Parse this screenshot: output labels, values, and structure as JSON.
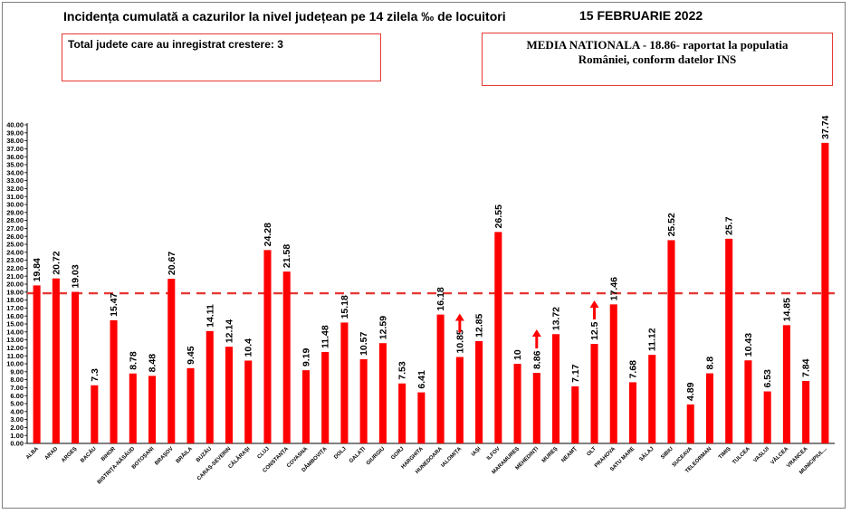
{
  "header": {
    "title": "Incidența cumulată a cazurilor la nivel județean pe 14 zilela ‰ de locuitori",
    "date": "15 FEBRUARIE 2022"
  },
  "info_left": {
    "text": "Total judete care au inregistrat crestere: 3"
  },
  "info_right": {
    "line1": "MEDIA NATIONALA - 18.86-  raportat la populatia",
    "line2": "României, conform datelor INS"
  },
  "colors": {
    "bar": "#ff0000",
    "reference_line": "#e53935",
    "arrow": "#ff0000",
    "axis": "#000000"
  },
  "chart_data": {
    "type": "bar",
    "categories": [
      "ALBA",
      "ARAD",
      "ARGEȘ",
      "BACĂU",
      "BIHOR",
      "BISTRIȚA-NĂSĂUD",
      "BOTOȘANI",
      "BRAȘOV",
      "BRĂILA",
      "BUZĂU",
      "CARAȘ-SEVERIN",
      "CĂLĂRAȘI",
      "CLUJ",
      "CONSTANȚA",
      "COVASNA",
      "DÂMBOVIȚA",
      "DOLJ",
      "GALAȚI",
      "GIURGIU",
      "GORJ",
      "HARGHITA",
      "HUNEDOARA",
      "IALOMIȚA",
      "IAȘI",
      "ILFOV",
      "MARAMUREȘ",
      "MEHEDINȚI",
      "MUREȘ",
      "NEAMȚ",
      "OLT",
      "PRAHOVA",
      "SATU MARE",
      "SĂLAJ",
      "SIBIU",
      "SUCEAVA",
      "TELEORMAN",
      "TIMIȘ",
      "TULCEA",
      "VASLUI",
      "VÂLCEA",
      "VRANCEA",
      "MUNICIPIUL..."
    ],
    "values": [
      19.84,
      20.72,
      19.03,
      7.3,
      15.47,
      8.78,
      8.48,
      20.67,
      9.45,
      14.11,
      12.14,
      10.4,
      24.28,
      21.58,
      9.19,
      11.48,
      15.18,
      10.57,
      12.59,
      7.53,
      6.41,
      16.18,
      10.85,
      12.85,
      26.55,
      10,
      8.86,
      13.72,
      7.17,
      12.5,
      17.46,
      7.68,
      11.12,
      25.52,
      4.89,
      8.8,
      25.7,
      10.43,
      6.53,
      14.85,
      7.84,
      37.74
    ],
    "value_labels": [
      "19.84",
      "20.72",
      "19.03",
      "7.3",
      "15.47",
      "8.78",
      "8.48",
      "20.67",
      "9.45",
      "14.11",
      "12.14",
      "10.4",
      "24.28",
      "21.58",
      "9.19",
      "11.48",
      "15.18",
      "10.57",
      "12.59",
      "7.53",
      "6.41",
      "16.18",
      "10.85",
      "12.85",
      "26.55",
      "10",
      "8.86",
      "13.72",
      "7.17",
      "12.5",
      "17.46",
      "7.68",
      "11.12",
      "25.52",
      "4.89",
      "8.8",
      "25.7",
      "10.43",
      "6.53",
      "14.85",
      "7.84",
      "37.74"
    ],
    "ylim": [
      0,
      40
    ],
    "ytick_step": 1,
    "ytick_labels": [
      "0.00",
      "1.00",
      "2.00",
      "3.00",
      "4.00",
      "5.00",
      "6.00",
      "7.00",
      "8.00",
      "9.00",
      "10.00",
      "11.00",
      "12.00",
      "13.00",
      "14.00",
      "15.00",
      "16.00",
      "17.00",
      "18.00",
      "19.00",
      "20.00",
      "21.00",
      "22.00",
      "23.00",
      "24.00",
      "25.00",
      "26.00",
      "27.00",
      "28.00",
      "29.00",
      "30.00",
      "31.00",
      "32.00",
      "33.00",
      "34.00",
      "35.00",
      "36.00",
      "37.00",
      "38.00",
      "39.00",
      "40.00"
    ],
    "reference_line": {
      "value": 18.86,
      "style": "dashed"
    },
    "increase_markers": [
      "IALOMIȚA",
      "MEHEDINȚI",
      "OLT"
    ],
    "grid": false,
    "legend": "none"
  }
}
